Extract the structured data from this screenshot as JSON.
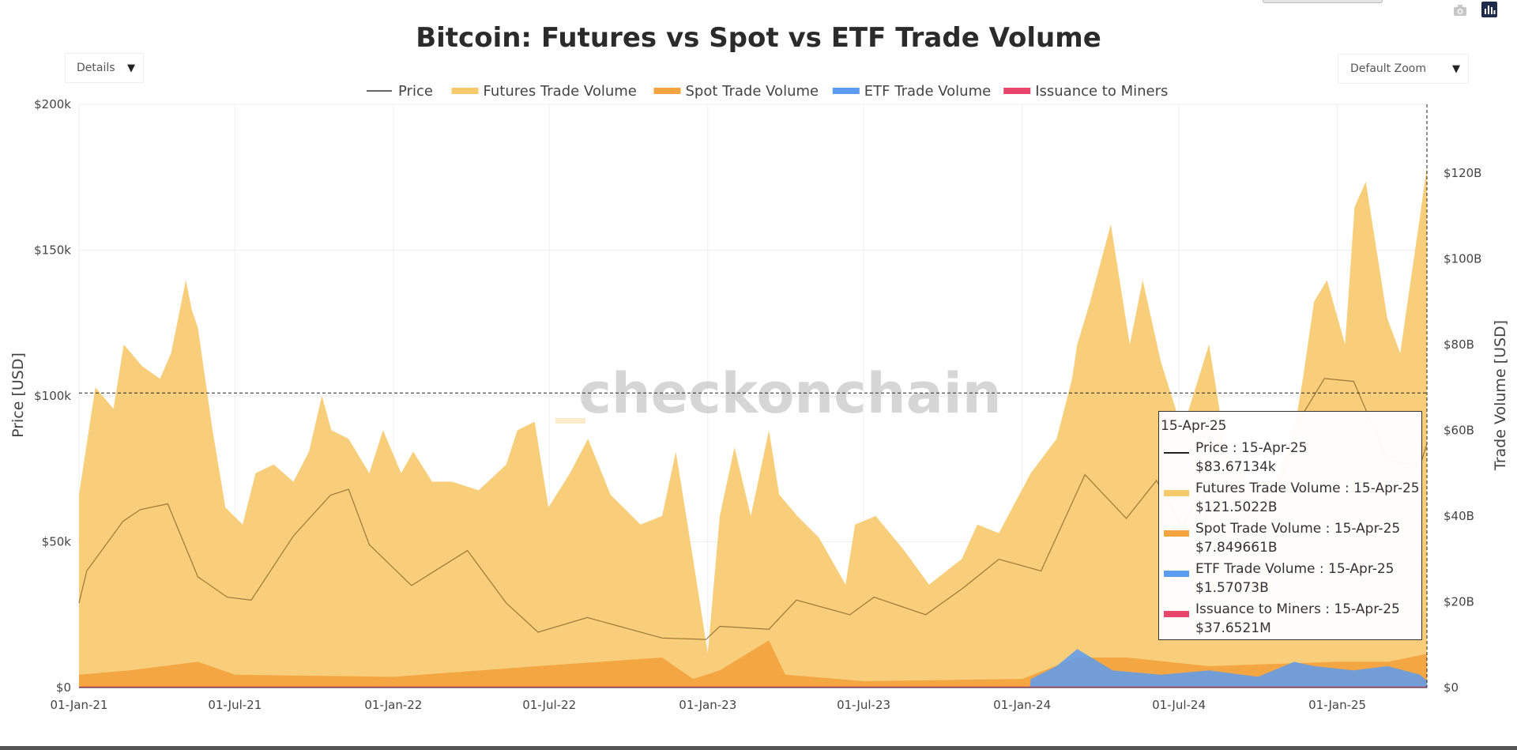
{
  "title": "Bitcoin: Futures vs Spot vs ETF Trade Volume",
  "controls": {
    "details_label": "Details",
    "zoom_label": "Default Zoom",
    "camera_icon": "camera-icon",
    "plotly_icon": "plotly-logo-icon"
  },
  "watermark": "checkonchain",
  "legend": [
    {
      "name": "Price",
      "color": "#333333",
      "kind": "line"
    },
    {
      "name": "Futures Trade Volume",
      "color": "#f8c96b",
      "kind": "area"
    },
    {
      "name": "Spot Trade Volume",
      "color": "#f3a33f",
      "kind": "area"
    },
    {
      "name": "ETF Trade Volume",
      "color": "#5b9bf0",
      "kind": "area"
    },
    {
      "name": "Issuance to Miners",
      "color": "#e8456c",
      "kind": "area"
    }
  ],
  "tooltip": {
    "date": "15-Apr-25",
    "rows": [
      {
        "line1": "Price : 15-Apr-25",
        "line2": "$83.67134k",
        "color": "#222222",
        "kind": "line"
      },
      {
        "line1": "Futures Trade Volume : 15-Apr-25",
        "line2": "$121.5022B",
        "color": "#f8c96b",
        "kind": "area"
      },
      {
        "line1": "Spot Trade Volume : 15-Apr-25",
        "line2": "$7.849661B",
        "color": "#f3a33f",
        "kind": "area"
      },
      {
        "line1": "ETF Trade Volume : 15-Apr-25",
        "line2": "$1.57073B",
        "color": "#5b9bf0",
        "kind": "area"
      },
      {
        "line1": "Issuance to Miners : 15-Apr-25",
        "line2": "$37.6521M",
        "color": "#e8456c",
        "kind": "area"
      }
    ]
  },
  "chart_data": {
    "type": "area",
    "title": "Bitcoin: Futures vs Spot vs ETF Trade Volume",
    "x_ticks": [
      "01-Jan-21",
      "01-Jul-21",
      "01-Jan-22",
      "01-Jul-22",
      "01-Jan-23",
      "01-Jul-23",
      "01-Jan-24",
      "01-Jul-24",
      "01-Jan-25"
    ],
    "xlim": [
      "2021-01-01",
      "2025-04-15"
    ],
    "ylabel_left": "Price [USD]",
    "ylabel_right": "Trade Volume [USD]",
    "y_left_ticks": [
      "$0",
      "$50k",
      "$100k",
      "$150k",
      "$200k"
    ],
    "y_left_lim": [
      0,
      200000
    ],
    "y_right_ticks": [
      "$0",
      "$20B",
      "$40B",
      "$60B",
      "$80B",
      "$100B",
      "$120B"
    ],
    "y_right_lim": [
      0,
      136000000000
    ],
    "grid": true,
    "legend_position": "top-center",
    "hover_price": 101000,
    "series": [
      {
        "name": "Futures Trade Volume",
        "axis": "right",
        "x": [
          "2021-01-01",
          "2021-01-20",
          "2021-02-10",
          "2021-02-22",
          "2021-03-15",
          "2021-04-05",
          "2021-04-18",
          "2021-05-05",
          "2021-05-12",
          "2021-05-19",
          "2021-06-05",
          "2021-06-20",
          "2021-07-10",
          "2021-07-25",
          "2021-08-15",
          "2021-09-07",
          "2021-09-25",
          "2021-10-10",
          "2021-10-21",
          "2021-11-10",
          "2021-12-04",
          "2021-12-20",
          "2022-01-10",
          "2022-01-24",
          "2022-02-15",
          "2022-03-10",
          "2022-04-10",
          "2022-05-12",
          "2022-05-25",
          "2022-06-14",
          "2022-06-30",
          "2022-07-25",
          "2022-08-15",
          "2022-09-10",
          "2022-10-15",
          "2022-11-09",
          "2022-11-25",
          "2022-12-15",
          "2023-01-01",
          "2023-01-15",
          "2023-02-01",
          "2023-02-20",
          "2023-03-13",
          "2023-03-25",
          "2023-04-15",
          "2023-05-10",
          "2023-06-10",
          "2023-06-21",
          "2023-07-15",
          "2023-08-17",
          "2023-09-15",
          "2023-10-23",
          "2023-11-10",
          "2023-12-05",
          "2024-01-11",
          "2024-02-10",
          "2024-02-28",
          "2024-03-05",
          "2024-03-20",
          "2024-04-13",
          "2024-05-05",
          "2024-05-20",
          "2024-06-10",
          "2024-07-05",
          "2024-08-05",
          "2024-08-25",
          "2024-09-20",
          "2024-10-20",
          "2024-11-12",
          "2024-11-22",
          "2024-12-05",
          "2024-12-20",
          "2025-01-10",
          "2025-01-21",
          "2025-02-03",
          "2025-02-28",
          "2025-03-15",
          "2025-04-07",
          "2025-04-15"
        ],
        "values": [
          45,
          70,
          65,
          80,
          75,
          72,
          78,
          95,
          88,
          84,
          60,
          42,
          38,
          50,
          52,
          48,
          55,
          68,
          60,
          58,
          50,
          60,
          50,
          55,
          48,
          48,
          46,
          52,
          60,
          62,
          42,
          50,
          58,
          45,
          38,
          40,
          55,
          30,
          8,
          40,
          56,
          40,
          60,
          45,
          40,
          35,
          24,
          38,
          40,
          32,
          24,
          30,
          38,
          36,
          50,
          58,
          72,
          80,
          90,
          108,
          80,
          95,
          76,
          60,
          80,
          55,
          48,
          48,
          60,
          72,
          90,
          95,
          80,
          112,
          118,
          86,
          78,
          110,
          121.5
        ]
      },
      {
        "name": "Spot Trade Volume",
        "axis": "right",
        "x": [
          "2021-01-01",
          "2021-03-01",
          "2021-05-19",
          "2021-07-01",
          "2022-01-01",
          "2022-06-18",
          "2022-11-09",
          "2022-12-15",
          "2023-01-15",
          "2023-03-13",
          "2023-04-01",
          "2023-07-01",
          "2024-01-01",
          "2024-03-05",
          "2024-05-01",
          "2024-08-05",
          "2025-01-01",
          "2025-03-01",
          "2025-04-15"
        ],
        "values": [
          3,
          4,
          6,
          3,
          2.5,
          5,
          7,
          2,
          4,
          11,
          3,
          1.5,
          2,
          7,
          7,
          5,
          6,
          6,
          7.85
        ]
      },
      {
        "name": "ETF Trade Volume",
        "axis": "right",
        "x": [
          "2021-01-01",
          "2024-01-10",
          "2024-01-11",
          "2024-02-10",
          "2024-03-05",
          "2024-04-15",
          "2024-06-10",
          "2024-08-05",
          "2024-10-01",
          "2024-11-12",
          "2024-12-05",
          "2025-01-20",
          "2025-02-28",
          "2025-04-07",
          "2025-04-15"
        ],
        "values": [
          0,
          0,
          2,
          5,
          9,
          4,
          3,
          4,
          2.5,
          6,
          5,
          4,
          5,
          3,
          1.57
        ]
      },
      {
        "name": "Issuance to Miners",
        "axis": "right",
        "x": [
          "2021-01-01",
          "2025-04-15"
        ],
        "values": [
          0.05,
          0.04
        ]
      },
      {
        "name": "Price",
        "axis": "left",
        "x": [
          "2021-01-01",
          "2021-01-10",
          "2021-02-21",
          "2021-03-13",
          "2021-04-14",
          "2021-05-19",
          "2021-06-22",
          "2021-07-20",
          "2021-09-07",
          "2021-10-20",
          "2021-11-10",
          "2021-12-04",
          "2022-01-22",
          "2022-03-28",
          "2022-05-12",
          "2022-06-18",
          "2022-08-14",
          "2022-11-09",
          "2022-12-30",
          "2023-01-15",
          "2023-03-13",
          "2023-04-14",
          "2023-06-15",
          "2023-07-13",
          "2023-09-11",
          "2023-10-24",
          "2023-12-05",
          "2024-01-23",
          "2024-03-14",
          "2024-05-01",
          "2024-06-05",
          "2024-07-05",
          "2024-07-29",
          "2024-08-05",
          "2024-09-06",
          "2024-10-29",
          "2024-11-12",
          "2024-12-17",
          "2025-01-20",
          "2025-02-28",
          "2025-04-07",
          "2025-04-15"
        ],
        "values": [
          29000,
          40000,
          57000,
          61000,
          63000,
          38000,
          31000,
          30000,
          52000,
          66000,
          68000,
          49000,
          35000,
          47000,
          29000,
          19000,
          24000,
          17000,
          16500,
          21000,
          20000,
          30000,
          25000,
          31000,
          25000,
          34000,
          44000,
          40000,
          73000,
          58000,
          71000,
          55000,
          69000,
          52000,
          54000,
          72000,
          89000,
          106000,
          105000,
          78000,
          76000,
          83671
        ]
      }
    ]
  }
}
